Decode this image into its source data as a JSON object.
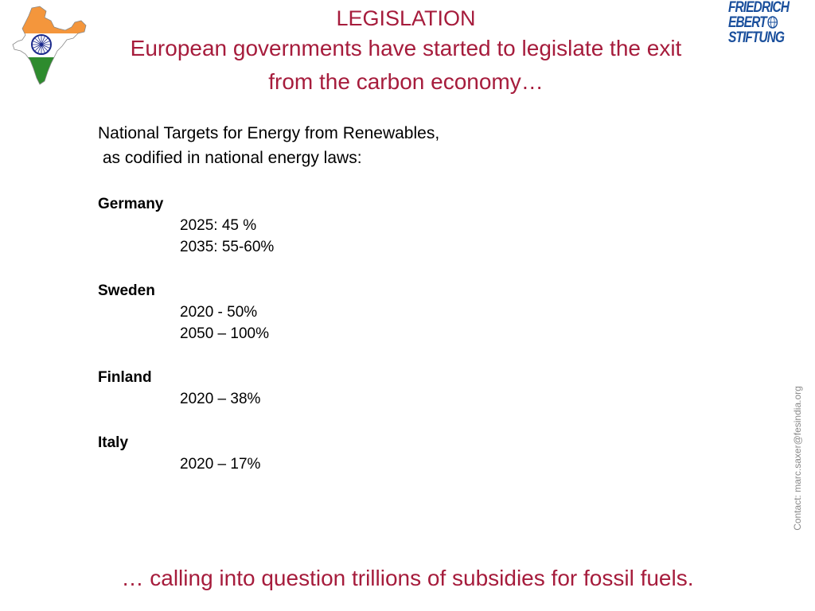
{
  "header": {
    "title": "LEGISLATION",
    "subtitle_line1": "European governments have started to legislate the exit",
    "subtitle_line2": "from the carbon economy…"
  },
  "logo": {
    "lines": [
      "FRIEDRICH",
      "EBERT",
      "STIFTUNG"
    ]
  },
  "intro": {
    "line1": "National Targets for Energy from Renewables,",
    "line2": " as codified in national energy laws:"
  },
  "countries": [
    {
      "name": "Germany",
      "targets": [
        "2025: 45 %",
        "2035: 55-60%"
      ]
    },
    {
      "name": "Sweden",
      "targets": [
        "2020 - 50%",
        "2050 – 100%"
      ]
    },
    {
      "name": "Finland",
      "targets": [
        "2020 – 38%"
      ]
    },
    {
      "name": "Italy",
      "targets": [
        "2020 – 17%"
      ]
    }
  ],
  "contact": "Contact: marc.saxer@fesindia.org",
  "footer": "… calling into question trillions of subsidies for fossil fuels.",
  "colors": {
    "title": "#a61c3c",
    "logo": "#1a4f9c",
    "saffron": "#f4963c",
    "green": "#2e8b2e",
    "chakra": "#1c2a8c"
  },
  "icons": {
    "india_map": "india-flag-map-icon",
    "globe": "globe-icon"
  }
}
